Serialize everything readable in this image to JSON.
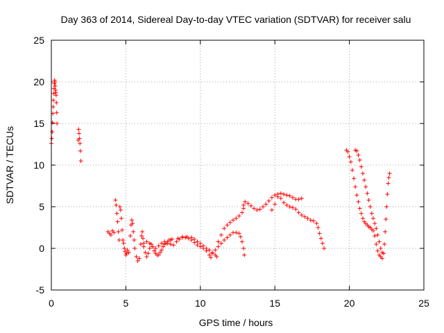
{
  "chart_data": {
    "type": "scatter",
    "title": "Day 363 of 2014, Sidereal Day-to-day VTEC variation (SDTVAR) for receiver salu",
    "xlabel": "GPS time / hours",
    "ylabel": "SDTVAR / TECUs",
    "xlim": [
      0,
      25
    ],
    "ylim": [
      -5,
      25
    ],
    "x_ticks": [
      0,
      5,
      10,
      15,
      20,
      25
    ],
    "y_ticks": [
      -5,
      0,
      5,
      10,
      15,
      20,
      25
    ],
    "grid": true,
    "marker": "+",
    "marker_color": "#ff0000",
    "series": [
      {
        "name": "SDTVAR",
        "points": [
          [
            0.0,
            12.6
          ],
          [
            0.03,
            13.2
          ],
          [
            0.06,
            14.0
          ],
          [
            0.08,
            15.1
          ],
          [
            0.1,
            16.2
          ],
          [
            0.12,
            17.0
          ],
          [
            0.14,
            17.8
          ],
          [
            0.16,
            18.6
          ],
          [
            0.18,
            19.2
          ],
          [
            0.2,
            19.8
          ],
          [
            0.22,
            20.2
          ],
          [
            0.24,
            20.0
          ],
          [
            0.26,
            19.5
          ],
          [
            0.28,
            19.0
          ],
          [
            0.3,
            18.7
          ],
          [
            0.32,
            18.4
          ],
          [
            0.34,
            17.5
          ],
          [
            0.36,
            16.3
          ],
          [
            0.38,
            15.0
          ],
          [
            1.8,
            13.0
          ],
          [
            1.83,
            14.3
          ],
          [
            1.86,
            13.8
          ],
          [
            1.89,
            13.2
          ],
          [
            1.92,
            12.6
          ],
          [
            1.95,
            11.7
          ],
          [
            1.98,
            10.5
          ],
          [
            3.8,
            2.0
          ],
          [
            3.9,
            1.8
          ],
          [
            4.0,
            1.6
          ],
          [
            4.1,
            2.1
          ],
          [
            4.2,
            1.9
          ],
          [
            4.3,
            5.8
          ],
          [
            4.35,
            5.2
          ],
          [
            4.4,
            4.2
          ],
          [
            4.45,
            3.2
          ],
          [
            4.5,
            2.0
          ],
          [
            4.55,
            1.0
          ],
          [
            4.6,
            5.0
          ],
          [
            4.65,
            4.6
          ],
          [
            4.7,
            3.6
          ],
          [
            4.75,
            2.2
          ],
          [
            4.8,
            1.0
          ],
          [
            4.85,
            0.6
          ],
          [
            4.9,
            0.0
          ],
          [
            4.95,
            -0.4
          ],
          [
            5.0,
            -0.8
          ],
          [
            5.05,
            -0.6
          ],
          [
            5.1,
            -0.2
          ],
          [
            5.2,
            -0.5
          ],
          [
            5.3,
            1.5
          ],
          [
            5.35,
            2.8
          ],
          [
            5.4,
            3.4
          ],
          [
            5.45,
            3.0
          ],
          [
            5.5,
            2.0
          ],
          [
            5.55,
            1.0
          ],
          [
            5.6,
            0.0
          ],
          [
            5.7,
            -1.0
          ],
          [
            5.8,
            -1.5
          ],
          [
            5.9,
            -1.2
          ],
          [
            6.0,
            0.5
          ],
          [
            6.05,
            1.5
          ],
          [
            6.1,
            2.0
          ],
          [
            6.15,
            1.2
          ],
          [
            6.2,
            0.2
          ],
          [
            6.3,
            -0.5
          ],
          [
            6.4,
            -1.0
          ],
          [
            6.5,
            -0.6
          ],
          [
            6.6,
            0.0
          ],
          [
            6.7,
            0.5
          ],
          [
            6.8,
            0.2
          ],
          [
            6.9,
            -0.3
          ],
          [
            7.0,
            -0.6
          ],
          [
            7.1,
            -0.8
          ],
          [
            7.2,
            -0.8
          ],
          [
            7.3,
            -0.5
          ],
          [
            7.4,
            -0.2
          ],
          [
            7.5,
            0.2
          ],
          [
            7.6,
            0.5
          ],
          [
            7.7,
            0.6
          ],
          [
            7.8,
            0.8
          ],
          [
            7.9,
            1.0
          ],
          [
            8.0,
            1.0
          ],
          [
            8.1,
            1.1
          ],
          [
            6.2,
            0.6
          ],
          [
            6.4,
            0.8
          ],
          [
            6.6,
            0.6
          ],
          [
            6.8,
            0.2
          ],
          [
            7.0,
            0.0
          ],
          [
            7.2,
            0.3
          ],
          [
            7.4,
            0.6
          ],
          [
            7.6,
            0.8
          ],
          [
            7.8,
            0.6
          ],
          [
            8.0,
            0.5
          ],
          [
            8.2,
            0.4
          ],
          [
            8.4,
            0.8
          ],
          [
            8.6,
            1.1
          ],
          [
            8.8,
            1.3
          ],
          [
            9.0,
            1.3
          ],
          [
            9.2,
            1.2
          ],
          [
            9.4,
            1.0
          ],
          [
            9.6,
            0.7
          ],
          [
            9.8,
            0.4
          ],
          [
            10.0,
            0.2
          ],
          [
            10.2,
            0.0
          ],
          [
            10.4,
            -0.3
          ],
          [
            10.6,
            -0.8
          ],
          [
            10.7,
            -1.1
          ],
          [
            8.5,
            1.2
          ],
          [
            8.8,
            1.4
          ],
          [
            9.1,
            1.4
          ],
          [
            9.4,
            1.3
          ],
          [
            9.6,
            1.1
          ],
          [
            9.8,
            0.8
          ],
          [
            10.0,
            0.6
          ],
          [
            10.2,
            0.3
          ],
          [
            10.4,
            0.0
          ],
          [
            10.6,
            -0.2
          ],
          [
            10.8,
            -0.5
          ],
          [
            11.0,
            -0.8
          ],
          [
            11.1,
            -1.0
          ],
          [
            11.2,
            0.2
          ],
          [
            11.4,
            0.6
          ],
          [
            11.6,
            1.0
          ],
          [
            11.8,
            1.3
          ],
          [
            12.0,
            1.6
          ],
          [
            12.2,
            1.9
          ],
          [
            12.4,
            1.9
          ],
          [
            12.6,
            1.8
          ],
          [
            12.7,
            1.4
          ],
          [
            12.8,
            0.8
          ],
          [
            12.9,
            0.0
          ],
          [
            12.95,
            -0.8
          ],
          [
            10.8,
            -0.6
          ],
          [
            11.0,
            -0.2
          ],
          [
            11.2,
            0.8
          ],
          [
            11.4,
            1.6
          ],
          [
            11.6,
            2.4
          ],
          [
            11.8,
            2.8
          ],
          [
            12.0,
            3.1
          ],
          [
            12.2,
            3.4
          ],
          [
            12.4,
            3.6
          ],
          [
            12.6,
            3.9
          ],
          [
            12.8,
            4.3
          ],
          [
            12.9,
            4.8
          ],
          [
            12.9,
            5.2
          ],
          [
            13.0,
            5.6
          ],
          [
            13.2,
            5.4
          ],
          [
            13.4,
            5.1
          ],
          [
            13.6,
            4.8
          ],
          [
            13.8,
            4.6
          ],
          [
            14.0,
            4.7
          ],
          [
            14.2,
            5.0
          ],
          [
            14.4,
            5.3
          ],
          [
            14.6,
            5.7
          ],
          [
            14.8,
            6.1
          ],
          [
            15.0,
            6.4
          ],
          [
            15.2,
            6.5
          ],
          [
            15.4,
            6.6
          ],
          [
            15.6,
            6.5
          ],
          [
            15.8,
            6.4
          ],
          [
            16.0,
            6.3
          ],
          [
            16.2,
            6.1
          ],
          [
            16.4,
            5.9
          ],
          [
            16.6,
            5.9
          ],
          [
            16.8,
            6.0
          ],
          [
            14.8,
            4.6
          ],
          [
            15.0,
            5.3
          ],
          [
            15.2,
            6.2
          ],
          [
            15.4,
            6.0
          ],
          [
            15.6,
            5.5
          ],
          [
            15.8,
            5.2
          ],
          [
            16.0,
            5.0
          ],
          [
            16.2,
            4.9
          ],
          [
            16.4,
            4.7
          ],
          [
            16.6,
            4.3
          ],
          [
            16.8,
            4.0
          ],
          [
            17.0,
            3.8
          ],
          [
            17.2,
            3.6
          ],
          [
            17.4,
            3.4
          ],
          [
            17.6,
            3.3
          ],
          [
            17.8,
            3.0
          ],
          [
            17.9,
            2.5
          ],
          [
            18.0,
            1.8
          ],
          [
            18.1,
            1.2
          ],
          [
            18.2,
            0.6
          ],
          [
            18.3,
            0.0
          ],
          [
            19.8,
            11.8
          ],
          [
            19.9,
            11.6
          ],
          [
            20.0,
            11.0
          ],
          [
            20.1,
            10.4
          ],
          [
            20.2,
            9.4
          ],
          [
            20.3,
            8.4
          ],
          [
            20.4,
            7.4
          ],
          [
            20.5,
            6.4
          ],
          [
            20.6,
            5.6
          ],
          [
            20.7,
            4.8
          ],
          [
            20.8,
            4.2
          ],
          [
            20.9,
            3.6
          ],
          [
            21.0,
            3.2
          ],
          [
            21.1,
            3.0
          ],
          [
            21.2,
            2.8
          ],
          [
            21.3,
            2.6
          ],
          [
            21.4,
            2.5
          ],
          [
            21.5,
            2.3
          ],
          [
            21.6,
            2.1
          ],
          [
            21.7,
            1.5
          ],
          [
            21.8,
            0.5
          ],
          [
            21.9,
            -0.3
          ],
          [
            22.0,
            -0.8
          ],
          [
            22.1,
            -1.0
          ],
          [
            22.2,
            -1.2
          ],
          [
            20.4,
            11.8
          ],
          [
            20.5,
            11.7
          ],
          [
            20.6,
            11.2
          ],
          [
            20.7,
            10.6
          ],
          [
            20.8,
            9.8
          ],
          [
            20.9,
            9.0
          ],
          [
            21.0,
            8.2
          ],
          [
            21.1,
            7.4
          ],
          [
            21.2,
            6.6
          ],
          [
            21.3,
            5.8
          ],
          [
            21.4,
            5.0
          ],
          [
            21.5,
            4.2
          ],
          [
            21.6,
            3.6
          ],
          [
            21.7,
            3.0
          ],
          [
            21.8,
            2.4
          ],
          [
            21.9,
            1.6
          ],
          [
            22.0,
            0.8
          ],
          [
            22.1,
            0.0
          ],
          [
            22.2,
            -0.5
          ],
          [
            22.3,
            -0.6
          ],
          [
            22.35,
            0.5
          ],
          [
            22.4,
            2.0
          ],
          [
            22.45,
            3.5
          ],
          [
            22.5,
            5.0
          ],
          [
            22.55,
            6.5
          ],
          [
            22.6,
            7.8
          ],
          [
            22.65,
            8.5
          ],
          [
            22.7,
            9.0
          ]
        ]
      }
    ]
  }
}
